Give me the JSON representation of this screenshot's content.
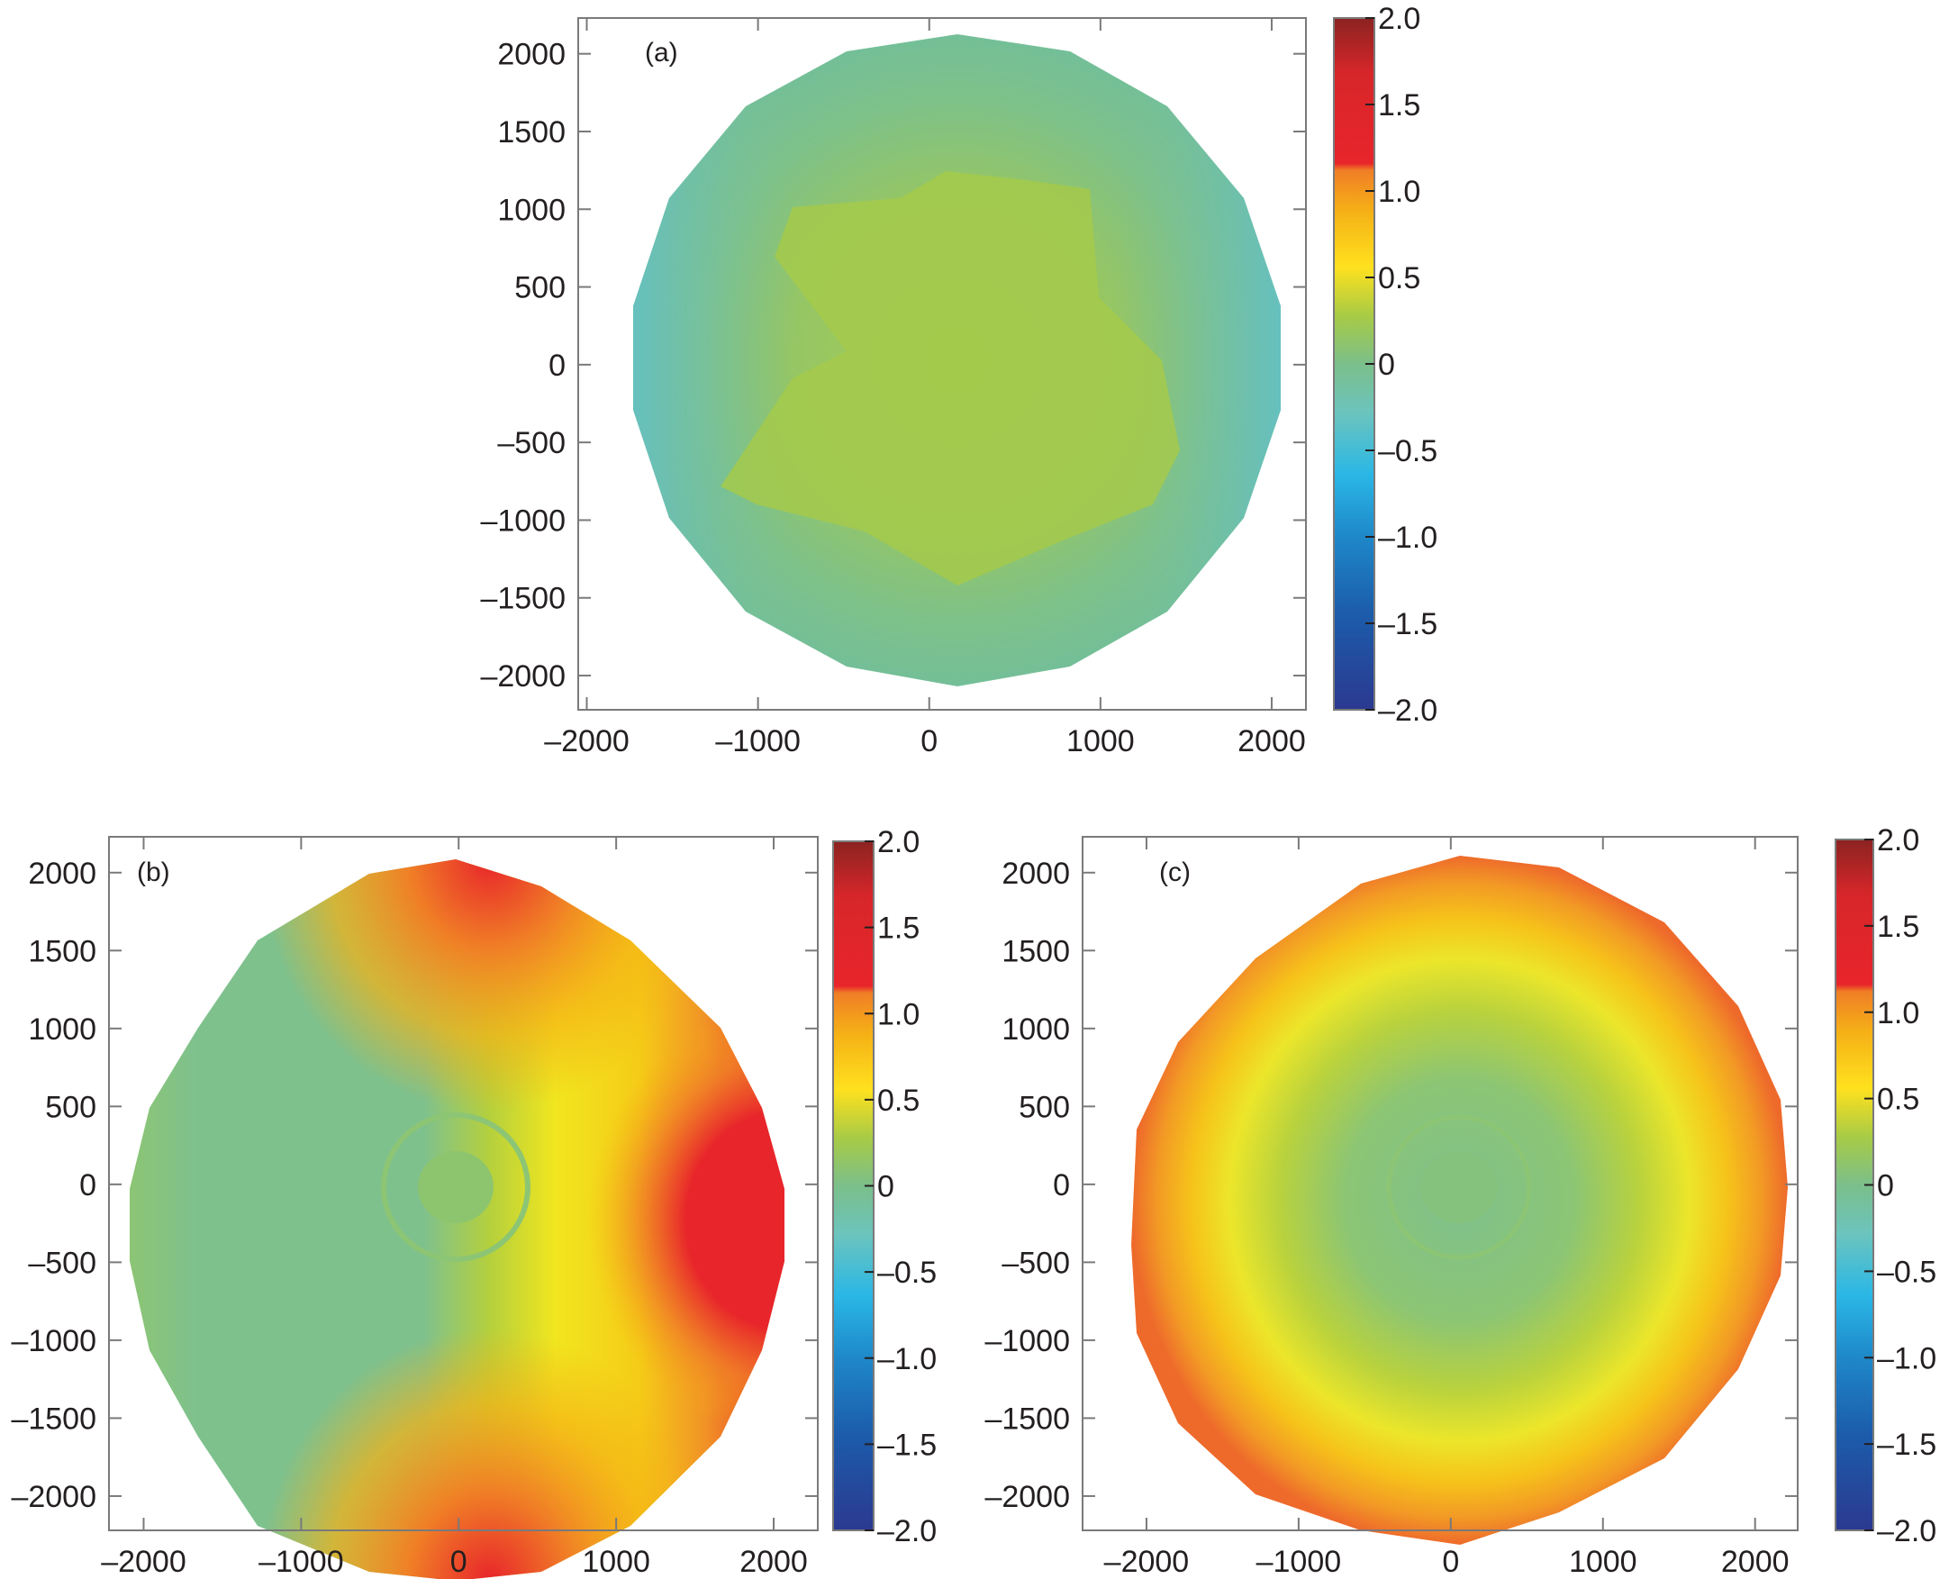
{
  "chart_data": [
    {
      "type": "heatmap",
      "panel_label": "(a)",
      "x_ticks": [
        "–2000",
        "–1000",
        "0",
        "1000",
        "2000"
      ],
      "y_ticks": [
        "2000",
        "1500",
        "1000",
        "500",
        "0",
        "–500",
        "–1000",
        "–1500",
        "–2000"
      ],
      "xlim": [
        -2050,
        2200
      ],
      "ylim": [
        -2220,
        2230
      ],
      "colorbar": {
        "ticks": [
          "2.0",
          "1.5",
          "1.0",
          "0.5",
          "0",
          "–0.5",
          "–1.0",
          "–1.5",
          "–2.0"
        ],
        "range": [
          -2.0,
          2.0
        ]
      },
      "description_values": {
        "center": 0.15,
        "edge_left_right": -0.35,
        "edge_top_bottom": -0.2,
        "field_shape": "cross"
      }
    },
    {
      "type": "heatmap",
      "panel_label": "(b)",
      "x_ticks": [
        "–2000",
        "–1000",
        "0",
        "1000",
        "2000"
      ],
      "y_ticks": [
        "2000",
        "1500",
        "1000",
        "500",
        "0",
        "–500",
        "–1000",
        "–1500",
        "–2000"
      ],
      "xlim": [
        -2220,
        2280
      ],
      "ylim": [
        -2220,
        2230
      ],
      "colorbar": {
        "ticks": [
          "2.0",
          "1.5",
          "1.0",
          "0.5",
          "0",
          "–0.5",
          "–1.0",
          "–1.5",
          "–2.0"
        ],
        "range": [
          -2.0,
          2.0
        ]
      },
      "description_values": {
        "left_half": 0.0,
        "right_edge_max": 1.3,
        "top_bottom_max": 1.3,
        "field_shape": "asymmetric"
      }
    },
    {
      "type": "heatmap",
      "panel_label": "(c)",
      "x_ticks": [
        "–2000",
        "–1000",
        "0",
        "1000",
        "2000"
      ],
      "y_ticks": [
        "2000",
        "1500",
        "1000",
        "500",
        "0",
        "–500",
        "–1000",
        "–1500",
        "–2000"
      ],
      "xlim": [
        -2420,
        2280
      ],
      "ylim": [
        -2220,
        2230
      ],
      "colorbar": {
        "ticks": [
          "2.0",
          "1.5",
          "1.0",
          "0.5",
          "0",
          "–0.5",
          "–1.0",
          "–1.5",
          "–2.0"
        ],
        "range": [
          -2.0,
          2.0
        ]
      },
      "description_values": {
        "center": 0.0,
        "edge": 1.0,
        "field_shape": "radial"
      }
    }
  ],
  "colors": {
    "colormap_stops": [
      "#2b3990",
      "#1c5cab",
      "#1e88c9",
      "#2ab7e6",
      "#6cc4bd",
      "#7bbf8a",
      "#a8cb45",
      "#ffe11e",
      "#f5b116",
      "#f07e26",
      "#e8252b",
      "#8b2321"
    ],
    "axis": "#7a7a7a",
    "text": "#231f20"
  }
}
